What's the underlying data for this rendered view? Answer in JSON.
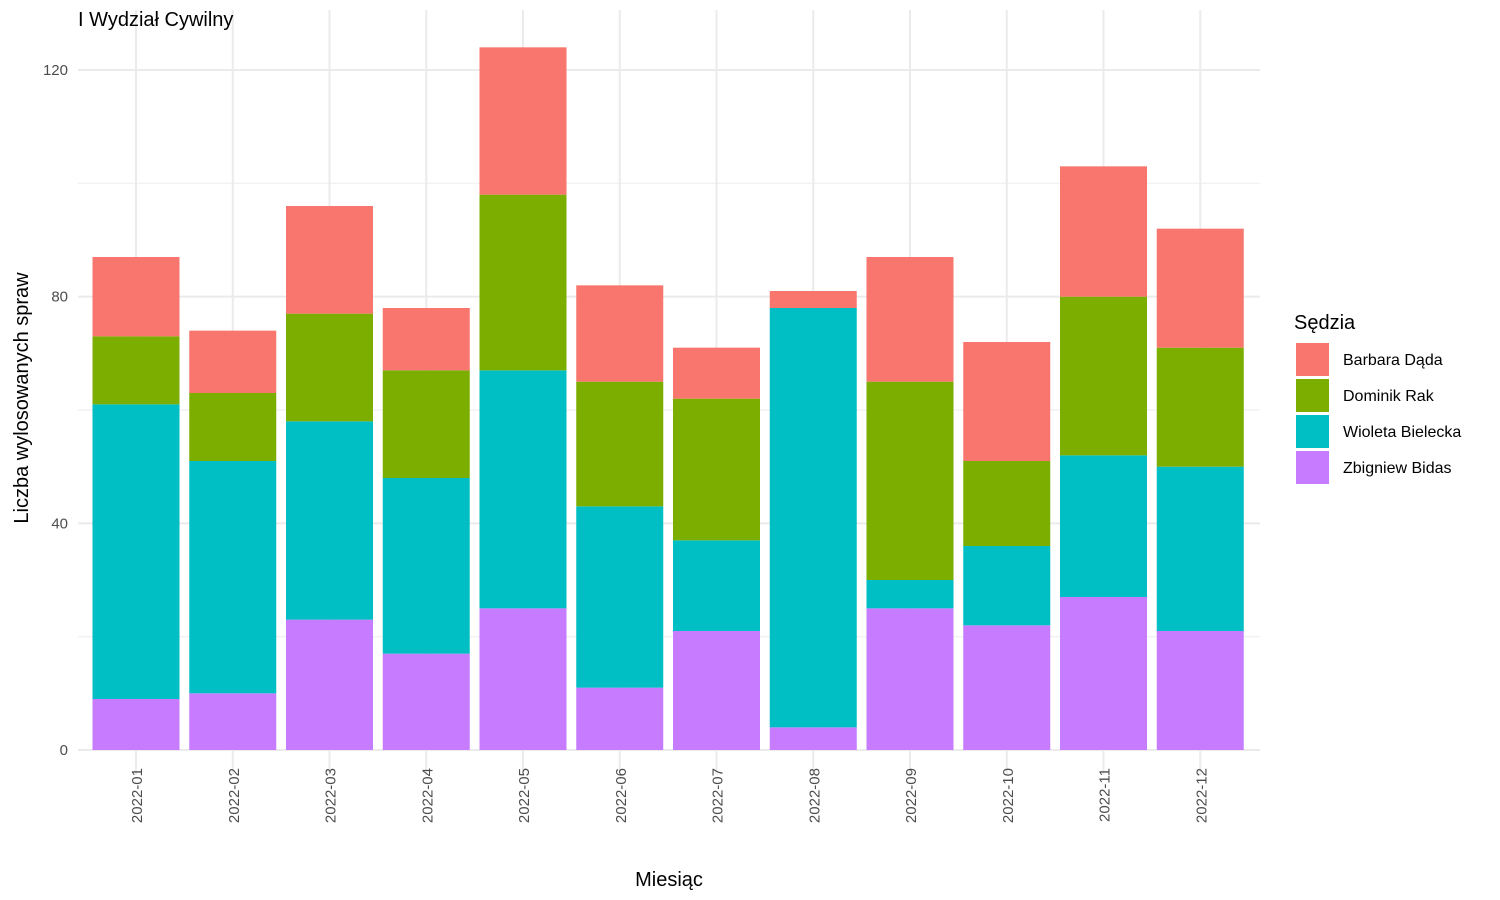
{
  "chart_data": {
    "type": "bar",
    "stacked": true,
    "title": "I Wydział Cywilny",
    "xlabel": "Miesiąc",
    "ylabel": "Liczba wylosowanych spraw",
    "ylim": [
      0,
      126
    ],
    "yticks": [
      0,
      40,
      80,
      120
    ],
    "grid": true,
    "legend_title": "Sędzia",
    "legend_position": "right",
    "categories": [
      "2022-01",
      "2022-02",
      "2022-03",
      "2022-04",
      "2022-05",
      "2022-06",
      "2022-07",
      "2022-08",
      "2022-09",
      "2022-10",
      "2022-11",
      "2022-12"
    ],
    "series": [
      {
        "name": "Zbigniew Bidas",
        "color": "#C77CFF",
        "values": [
          9,
          10,
          23,
          17,
          25,
          11,
          21,
          4,
          25,
          22,
          27,
          21
        ]
      },
      {
        "name": "Wioleta Bielecka",
        "color": "#00BFC4",
        "values": [
          52,
          41,
          35,
          31,
          42,
          32,
          16,
          74,
          5,
          14,
          25,
          29
        ]
      },
      {
        "name": "Dominik Rak",
        "color": "#7CAE00",
        "values": [
          12,
          12,
          19,
          19,
          31,
          22,
          25,
          0,
          35,
          15,
          28,
          21
        ]
      },
      {
        "name": "Barbara Dąda",
        "color": "#F8766D",
        "values": [
          14,
          11,
          19,
          11,
          26,
          17,
          9,
          3,
          22,
          21,
          23,
          21
        ]
      }
    ],
    "legend_order": [
      "Barbara Dąda",
      "Dominik Rak",
      "Wioleta Bielecka",
      "Zbigniew Bidas"
    ]
  }
}
